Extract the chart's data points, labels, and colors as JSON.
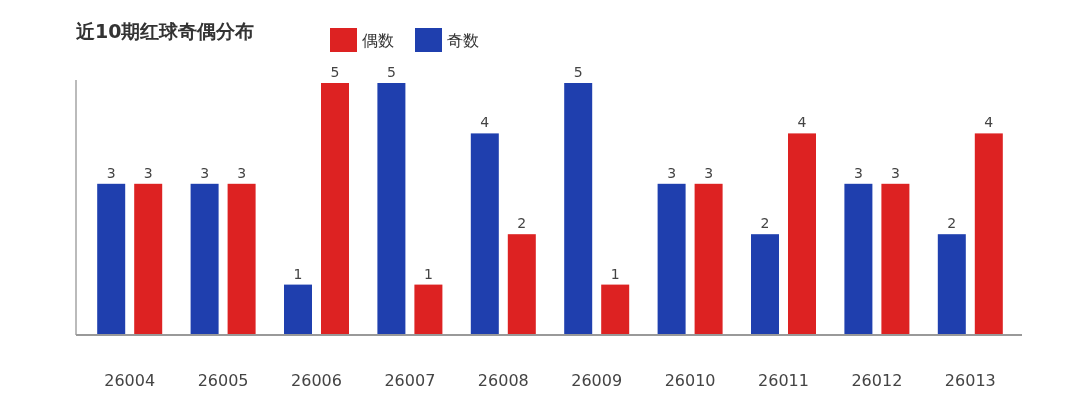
{
  "chart_data": {
    "type": "bar",
    "title": "近10期红球奇偶分布",
    "categories": [
      "26004",
      "26005",
      "26006",
      "26007",
      "26008",
      "26009",
      "26010",
      "26011",
      "26012",
      "26013"
    ],
    "series": [
      {
        "name": "奇数",
        "color": "#1f3fae",
        "values": [
          3,
          3,
          1,
          5,
          4,
          5,
          3,
          2,
          3,
          2
        ]
      },
      {
        "name": "偶数",
        "color": "#dd2222",
        "values": [
          3,
          3,
          5,
          1,
          2,
          1,
          3,
          4,
          3,
          4
        ]
      }
    ],
    "data_labels": true,
    "legend": "top"
  }
}
